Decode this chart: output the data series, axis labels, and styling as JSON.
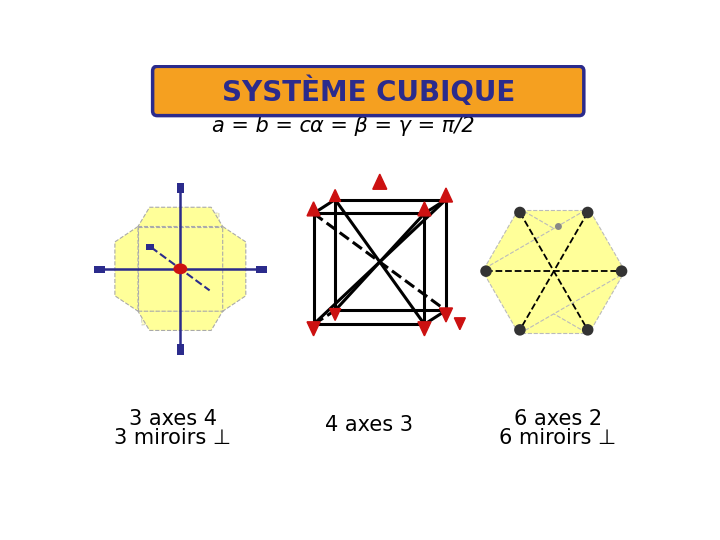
{
  "title": "SYSTÈME CUBIQUE",
  "title_color": "#2B2B8C",
  "title_bg": "#F5A020",
  "subtitle_left": "a = b = c",
  "subtitle_right": "α = β = γ = π/2",
  "label1_line1": "3 axes 4",
  "label1_line2": "3 miroirs ⊥",
  "label2": "4 axes 3",
  "label3_line1": "6 axes 2",
  "label3_line2": "6 miroirs ⊥",
  "bg_color": "#FFFFFF",
  "yellow": "#FFFF99",
  "blue_dark": "#2B2B8C",
  "red": "#CC1111",
  "black": "#000000",
  "gray": "#555555"
}
